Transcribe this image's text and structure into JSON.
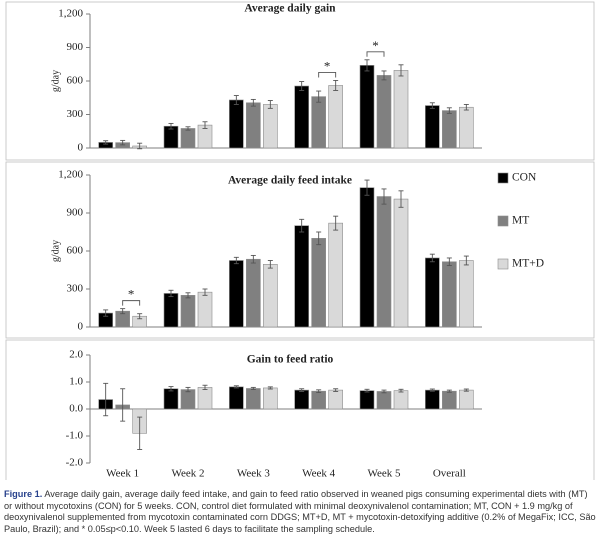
{
  "colors": {
    "CON": "#000000",
    "MT": "#808080",
    "MT+D": "#d9d9d9",
    "axis": "#7f7f7f",
    "text": "#222222"
  },
  "chart_data": [
    {
      "type": "bar",
      "title": "Average daily gain",
      "ylabel": "g/day",
      "ylim": [
        0,
        1200
      ],
      "yticks": [
        0,
        300,
        600,
        900,
        1200
      ],
      "ytick_labels": [
        "0",
        "300",
        "600",
        "900",
        "1,200"
      ],
      "categories": [
        "Week 1",
        "Week 2",
        "Week 3",
        "Week 4",
        "Week 5",
        "Overall"
      ],
      "series": [
        {
          "name": "CON",
          "values": [
            50,
            195,
            430,
            555,
            740,
            380
          ],
          "errors": [
            15,
            25,
            40,
            40,
            50,
            25
          ]
        },
        {
          "name": "MT",
          "values": [
            48,
            175,
            405,
            460,
            650,
            335
          ],
          "errors": [
            20,
            15,
            30,
            50,
            40,
            25
          ]
        },
        {
          "name": "MT+D",
          "values": [
            18,
            205,
            390,
            560,
            695,
            365
          ],
          "errors": [
            25,
            30,
            35,
            45,
            50,
            25
          ]
        }
      ],
      "significance": [
        {
          "category": "Week 4",
          "from": "MT",
          "to": "MT+D",
          "label": "*"
        },
        {
          "category": "Week 5",
          "from": "CON",
          "to": "MT",
          "label": "*"
        }
      ]
    },
    {
      "type": "bar",
      "title": "Average daily feed intake",
      "ylabel": "g/day",
      "ylim": [
        0,
        1200
      ],
      "yticks": [
        0,
        300,
        600,
        900,
        1200
      ],
      "ytick_labels": [
        "0",
        "300",
        "600",
        "900",
        "1,200"
      ],
      "categories": [
        "Week 1",
        "Week 2",
        "Week 3",
        "Week 4",
        "Week 5",
        "Overall"
      ],
      "series": [
        {
          "name": "CON",
          "values": [
            110,
            265,
            525,
            800,
            1100,
            545
          ],
          "errors": [
            25,
            25,
            25,
            50,
            60,
            30
          ]
        },
        {
          "name": "MT",
          "values": [
            125,
            250,
            535,
            700,
            1030,
            515
          ],
          "errors": [
            20,
            20,
            30,
            50,
            60,
            30
          ]
        },
        {
          "name": "MT+D",
          "values": [
            85,
            275,
            495,
            820,
            1010,
            525
          ],
          "errors": [
            20,
            25,
            30,
            55,
            65,
            35
          ]
        }
      ],
      "significance": [
        {
          "category": "Week 1",
          "from": "MT",
          "to": "MT+D",
          "label": "*"
        }
      ],
      "legend": {
        "position": "right",
        "entries": [
          "CON",
          "MT",
          "MT+D"
        ]
      }
    },
    {
      "type": "bar",
      "title": "Gain to feed ratio",
      "ylabel": "",
      "ylim": [
        -2.0,
        2.0
      ],
      "yticks": [
        -2.0,
        -1.0,
        0.0,
        1.0,
        2.0
      ],
      "ytick_labels": [
        "-2.0",
        "-1.0",
        "0.0",
        "1.0",
        "2.0"
      ],
      "categories": [
        "Week 1",
        "Week 2",
        "Week 3",
        "Week 4",
        "Week 5",
        "Overall"
      ],
      "series": [
        {
          "name": "CON",
          "values": [
            0.35,
            0.75,
            0.82,
            0.7,
            0.68,
            0.7
          ],
          "errors": [
            0.6,
            0.08,
            0.04,
            0.05,
            0.05,
            0.04
          ]
        },
        {
          "name": "MT",
          "values": [
            0.15,
            0.72,
            0.76,
            0.66,
            0.65,
            0.66
          ],
          "errors": [
            0.6,
            0.08,
            0.04,
            0.05,
            0.05,
            0.04
          ]
        },
        {
          "name": "MT+D",
          "values": [
            -0.9,
            0.8,
            0.78,
            0.7,
            0.68,
            0.7
          ],
          "errors": [
            0.6,
            0.08,
            0.04,
            0.05,
            0.05,
            0.04
          ]
        }
      ],
      "xlabels_shown": true
    }
  ],
  "caption": {
    "label": "Figure 1.",
    "text": "Average daily gain, average daily feed intake, and gain to feed ratio observed in weaned pigs consuming experimental diets with (MT) or without mycotoxins (CON) for 5 weeks. CON, control diet formulated with minimal deoxynivalenol contamination; MT, CON + 1.9 mg/kg of deoxynivalenol supplemented from mycotoxin contaminated corn DDGS; MT+D, MT + mycotoxin-detoxifying additive (0.2% of MegaFix; ICC, São Paulo, Brazil); and * 0.05≤p<0.10. Week 5 lasted 6 days to facilitate the sampling schedule."
  }
}
